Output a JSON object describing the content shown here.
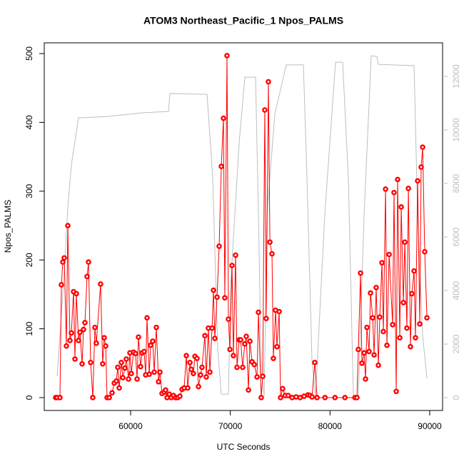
{
  "chart_data": {
    "type": "line",
    "title": "ATOM3 Northeast_Pacific_1 Npos_PALMS",
    "x_label": "UTC Seconds",
    "y_label": "Npos_PALMS",
    "xlim": [
      51340,
      91290
    ],
    "xticks": [
      60000,
      70000,
      80000,
      90000
    ],
    "ylim": [
      -18.7,
      515.6
    ],
    "yticks": [
      0,
      100,
      200,
      300,
      400,
      500
    ],
    "y2lim": [
      -480,
      13253
    ],
    "y2ticks": [
      0,
      2000,
      4000,
      6000,
      8000,
      10000,
      12000
    ],
    "series": [
      {
        "color": "#ff0000",
        "markers": true,
        "x": [
          52486,
          52629,
          52915,
          53058,
          53202,
          53345,
          53560,
          53703,
          53918,
          54061,
          54276,
          54419,
          54562,
          54777,
          54920,
          55135,
          55278,
          55421,
          55636,
          55779,
          55994,
          56209,
          56420,
          56560,
          56990,
          57200,
          57350,
          57500,
          57640,
          57860,
          58140,
          58360,
          58570,
          58710,
          58860,
          59070,
          59220,
          59430,
          59570,
          59790,
          59930,
          60070,
          60290,
          60500,
          60650,
          60790,
          61000,
          61150,
          61360,
          61510,
          61650,
          61870,
          62010,
          62220,
          62370,
          62580,
          62800,
          62940,
          63150,
          63370,
          63510,
          63660,
          63870,
          64080,
          64300,
          64510,
          64730,
          64940,
          65160,
          65370,
          65590,
          65730,
          65950,
          66090,
          66300,
          66450,
          66660,
          66810,
          67020,
          67160,
          67450,
          67590,
          67800,
          67950,
          68170,
          68310,
          68450,
          68670,
          68880,
          69100,
          69310,
          69450,
          69670,
          69810,
          69960,
          70170,
          70310,
          70530,
          70670,
          70890,
          71040,
          71240,
          71450,
          71600,
          71820,
          71960,
          72180,
          72400,
          72680,
          72820,
          73100,
          73250,
          73460,
          73600,
          73820,
          73970,
          74180,
          74320,
          74540,
          74680,
          74900,
          75040,
          75250,
          75500,
          75800,
          76200,
          76600,
          77000,
          77400,
          77800,
          78000,
          78200,
          78476,
          78700,
          79500,
          80500,
          81500,
          82500,
          82700,
          82840,
          83059,
          83200,
          83420,
          83560,
          83700,
          83920,
          84060,
          84280,
          84420,
          84630,
          84850,
          84990,
          85210,
          85350,
          85570,
          85710,
          85930,
          86280,
          86420,
          86640,
          86780,
          87000,
          87140,
          87360,
          87500,
          87710,
          87860,
          88070,
          88210,
          88430,
          88570,
          88790,
          89000,
          89140,
          89290,
          89500,
          89720
        ],
        "values": [
          0,
          0,
          0,
          164,
          197,
          203,
          75,
          250,
          83,
          94,
          154,
          56,
          151,
          83,
          95,
          49,
          99,
          109,
          176,
          197,
          51,
          0,
          102,
          79,
          165,
          49,
          87,
          75,
          0,
          0,
          7,
          21,
          24,
          44,
          14,
          51,
          29,
          43,
          56,
          27,
          65,
          35,
          66,
          64,
          27,
          88,
          45,
          65,
          67,
          33,
          116,
          34,
          76,
          82,
          37,
          102,
          23,
          37,
          6,
          8,
          11,
          0,
          5,
          0,
          3,
          0,
          0,
          2,
          12,
          14,
          61,
          14,
          51,
          41,
          35,
          60,
          57,
          16,
          33,
          44,
          90,
          30,
          101,
          37,
          101,
          156,
          86,
          146,
          220,
          336,
          406,
          145,
          497,
          114,
          70,
          192,
          61,
          207,
          44,
          84,
          84,
          44,
          78,
          89,
          11,
          82,
          52,
          48,
          30,
          124,
          0,
          31,
          418,
          115,
          459,
          226,
          209,
          57,
          127,
          74,
          125,
          0,
          13,
          3,
          3,
          0,
          1,
          0,
          2,
          4,
          3,
          1,
          51,
          0,
          0,
          0,
          0,
          0,
          0,
          70,
          181,
          50,
          65,
          27,
          102,
          67,
          152,
          116,
          62,
          160,
          47,
          117,
          196,
          96,
          303,
          76,
          208,
          106,
          298,
          9,
          317,
          87,
          277,
          138,
          226,
          101,
          304,
          74,
          151,
          184,
          87,
          315,
          107,
          335,
          364,
          212,
          116
        ]
      },
      {
        "color": "#bebebe",
        "axis": "y2",
        "markers": false,
        "x": [
          52629,
          53345,
          53703,
          54061,
          54777,
          57641,
          61221,
          63798,
          63942,
          67665,
          68238,
          68739,
          69097,
          69813,
          70028,
          70887,
          71460,
          72534,
          72820,
          73106,
          73393,
          73679,
          74467,
          75612,
          77331,
          77689,
          78190,
          78548,
          79479,
          80553,
          81269,
          81842,
          82343,
          82844,
          83417,
          84133,
          84706,
          84849,
          88429,
          88787,
          89288,
          89718
        ],
        "values": [
          800,
          4700,
          7100,
          8700,
          10450,
          10500,
          10640,
          10690,
          11360,
          11330,
          8190,
          1790,
          130,
          130,
          4190,
          9520,
          11970,
          11970,
          6850,
          990,
          50,
          6850,
          10590,
          12430,
          12430,
          8190,
          1390,
          50,
          6850,
          12530,
          12530,
          8190,
          50,
          50,
          6850,
          12770,
          12740,
          12450,
          12400,
          6850,
          2320,
          720
        ]
      }
    ]
  }
}
